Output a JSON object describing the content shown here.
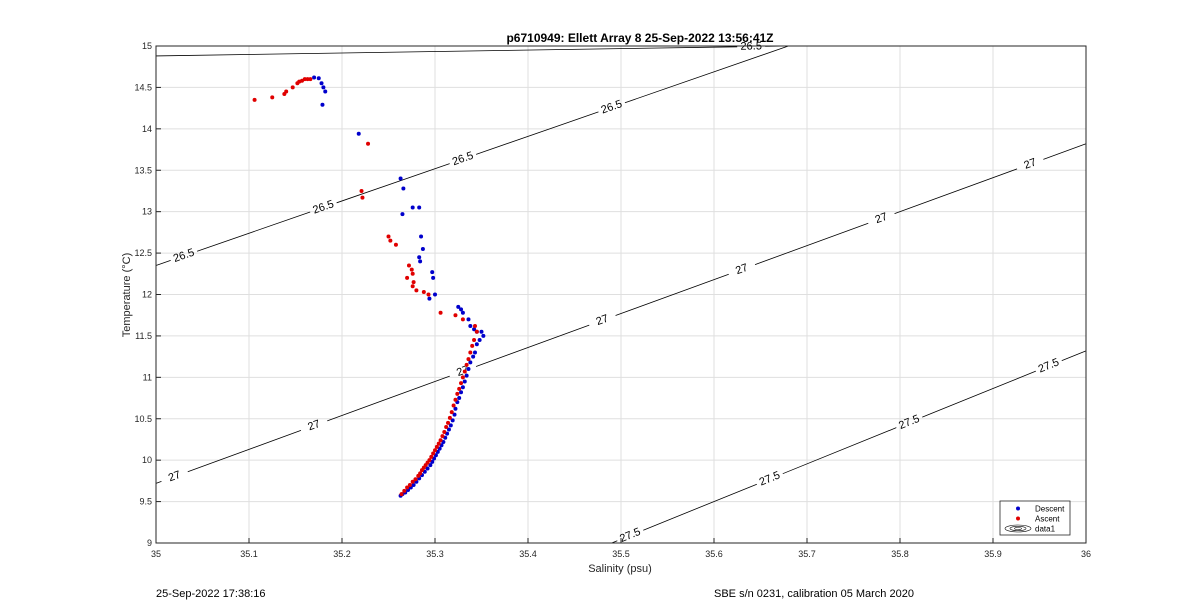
{
  "chart_data": {
    "type": "scatter",
    "title": "p6710949: Ellett Array 8 25-Sep-2022 13:56:41Z",
    "xlabel": "Salinity (psu)",
    "ylabel": "Temperature (°C)",
    "xlim": [
      35,
      36
    ],
    "ylim": [
      9,
      15
    ],
    "xticks": [
      "35",
      "35.1",
      "35.2",
      "35.3",
      "35.4",
      "35.5",
      "35.6",
      "35.7",
      "35.8",
      "35.9",
      "36"
    ],
    "yticks": [
      "9",
      "9.5",
      "10",
      "10.5",
      "11",
      "11.5",
      "12",
      "12.5",
      "13",
      "13.5",
      "14",
      "14.5",
      "15"
    ],
    "grid": true,
    "legend_position": "bottom-right",
    "legend": [
      "Descent",
      "Ascent",
      "data1"
    ],
    "colors": {
      "descent": "#0000cc",
      "ascent": "#e00000",
      "contour": "#000000",
      "grid": "#dfdfdf"
    },
    "series": [
      {
        "name": "Descent",
        "x": [
          35.17,
          35.175,
          35.178,
          35.18,
          35.182,
          35.179,
          35.218,
          35.263,
          35.266,
          35.265,
          35.276,
          35.283,
          35.285,
          35.287,
          35.283,
          35.284,
          35.297,
          35.298,
          35.3,
          35.294,
          35.325,
          35.328,
          35.33,
          35.336,
          35.338,
          35.342,
          35.345,
          35.35,
          35.352,
          35.348,
          35.345,
          35.343,
          35.341,
          35.338,
          35.336,
          35.334,
          35.332,
          35.33,
          35.328,
          35.326,
          35.324,
          35.322,
          35.321,
          35.319,
          35.317,
          35.315,
          35.313,
          35.311,
          35.309,
          35.307,
          35.305,
          35.303,
          35.301,
          35.299,
          35.297,
          35.295,
          35.292,
          35.289,
          35.286,
          35.283,
          35.28,
          35.277,
          35.274,
          35.271,
          35.268,
          35.265,
          35.263
        ],
        "y": [
          14.62,
          14.61,
          14.55,
          14.5,
          14.45,
          14.29,
          13.94,
          13.4,
          13.28,
          12.97,
          13.05,
          13.05,
          12.7,
          12.55,
          12.45,
          12.4,
          12.27,
          12.2,
          12.0,
          11.95,
          11.85,
          11.82,
          11.78,
          11.7,
          11.62,
          11.58,
          11.55,
          11.55,
          11.5,
          11.45,
          11.4,
          11.3,
          11.25,
          11.18,
          11.1,
          11.02,
          10.95,
          10.88,
          10.82,
          10.75,
          10.7,
          10.62,
          10.55,
          10.48,
          10.42,
          10.37,
          10.32,
          10.27,
          10.22,
          10.18,
          10.14,
          10.1,
          10.06,
          10.02,
          9.98,
          9.94,
          9.9,
          9.86,
          9.82,
          9.78,
          9.74,
          9.7,
          9.67,
          9.64,
          9.61,
          9.59,
          9.57
        ]
      },
      {
        "name": "Ascent",
        "x": [
          35.106,
          35.125,
          35.138,
          35.14,
          35.147,
          35.152,
          35.154,
          35.157,
          35.16,
          35.163,
          35.166,
          35.228,
          35.221,
          35.222,
          35.25,
          35.252,
          35.258,
          35.272,
          35.275,
          35.276,
          35.27,
          35.277,
          35.276,
          35.28,
          35.288,
          35.293,
          35.306,
          35.322,
          35.33,
          35.343,
          35.345,
          35.342,
          35.34,
          35.338,
          35.336,
          35.334,
          35.332,
          35.33,
          35.328,
          35.326,
          35.324,
          35.322,
          35.32,
          35.318,
          35.316,
          35.314,
          35.312,
          35.31,
          35.308,
          35.306,
          35.304,
          35.302,
          35.3,
          35.298,
          35.296,
          35.294,
          35.292,
          35.29,
          35.288,
          35.286,
          35.284,
          35.282,
          35.279,
          35.276,
          35.273,
          35.27,
          35.267,
          35.264
        ],
        "y": [
          14.35,
          14.38,
          14.42,
          14.45,
          14.5,
          14.55,
          14.57,
          14.58,
          14.6,
          14.6,
          14.6,
          13.82,
          13.25,
          13.17,
          12.7,
          12.65,
          12.6,
          12.35,
          12.3,
          12.25,
          12.2,
          12.15,
          12.1,
          12.05,
          12.03,
          12.0,
          11.78,
          11.75,
          11.7,
          11.62,
          11.55,
          11.45,
          11.38,
          11.3,
          11.22,
          11.15,
          11.07,
          11.0,
          10.93,
          10.86,
          10.8,
          10.73,
          10.66,
          10.58,
          10.51,
          10.45,
          10.4,
          10.34,
          10.29,
          10.24,
          10.2,
          10.16,
          10.12,
          10.08,
          10.04,
          10.0,
          9.97,
          9.94,
          9.91,
          9.88,
          9.84,
          9.81,
          9.77,
          9.74,
          9.7,
          9.67,
          9.63,
          9.59
        ]
      }
    ],
    "contours": [
      {
        "level": "26.5",
        "x": [
          35.0,
          35.68
        ],
        "y": [
          14.88,
          15.0
        ],
        "labels": [
          {
            "text": "26.5",
            "x": 35.64
          }
        ]
      },
      {
        "level": "26.5",
        "x": [
          35.0,
          35.68
        ],
        "y": [
          12.35,
          15.0
        ],
        "labels": [
          {
            "text": "26.5",
            "x": 35.03
          },
          {
            "text": "26.5",
            "x": 35.18
          },
          {
            "text": "26.5",
            "x": 35.33
          },
          {
            "text": "26.5",
            "x": 35.49
          }
        ]
      },
      {
        "level": "27",
        "x": [
          35.0,
          36.0
        ],
        "y": [
          9.72,
          13.82
        ],
        "labels": [
          {
            "text": "27",
            "x": 35.02
          },
          {
            "text": "27",
            "x": 35.17
          },
          {
            "text": "27",
            "x": 35.33
          },
          {
            "text": "27",
            "x": 35.48
          },
          {
            "text": "27",
            "x": 35.63
          },
          {
            "text": "27",
            "x": 35.78
          },
          {
            "text": "27",
            "x": 35.94
          }
        ]
      },
      {
        "level": "27.5",
        "x": [
          35.49,
          36.0
        ],
        "y": [
          9.0,
          11.32
        ],
        "labels": [
          {
            "text": "27.5",
            "x": 35.51
          },
          {
            "text": "27.5",
            "x": 35.66
          },
          {
            "text": "27.5",
            "x": 35.81
          },
          {
            "text": "27.5",
            "x": 35.96
          }
        ]
      }
    ]
  },
  "footer": {
    "timestamp": "25-Sep-2022 17:38:16",
    "instrument": "SBE s/n 0231, calibration 05 March 2020"
  }
}
